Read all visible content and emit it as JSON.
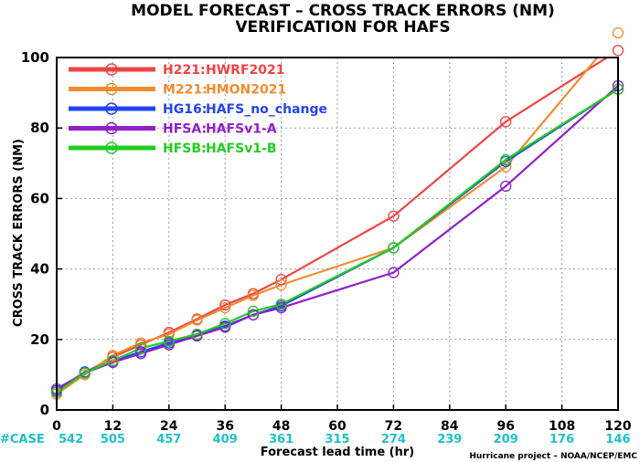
{
  "chart_data": {
    "type": "line",
    "title": "MODEL FORECAST – CROSS TRACK ERRORS (NM)",
    "subtitle": "VERIFICATION FOR HAFS",
    "xlabel": "Forecast lead time (hr)",
    "ylabel": "CROSS TRACK ERRORS (NM)",
    "credit": "Hurricane project – NOAA/NCEP/EMC",
    "xlim": [
      0,
      120
    ],
    "ylim": [
      0,
      100
    ],
    "x_ticks": [
      0,
      12,
      24,
      36,
      48,
      60,
      72,
      84,
      96,
      108,
      120
    ],
    "y_ticks": [
      0,
      20,
      40,
      60,
      80,
      100
    ],
    "grid": true,
    "legend_position": "top-left",
    "case_label": "#CASE",
    "case_color": "#20c0c8",
    "case_counts": [
      542,
      505,
      457,
      409,
      361,
      315,
      274,
      239,
      209,
      176,
      146
    ],
    "x": [
      0,
      6,
      12,
      18,
      24,
      30,
      36,
      42,
      48,
      72,
      96,
      120
    ],
    "series": [
      {
        "code": "H221:",
        "name": "HWRF2021",
        "color": "#ee4444",
        "values": [
          5.5,
          10.5,
          15.0,
          18.5,
          22.0,
          25.8,
          29.8,
          33.0,
          37.0,
          55.0,
          81.8,
          102.0
        ]
      },
      {
        "code": "M221:",
        "name": "HMON2021",
        "color": "#f08c30",
        "values": [
          4.5,
          10.0,
          15.5,
          19.0,
          21.5,
          25.5,
          29.0,
          32.5,
          35.5,
          46.0,
          69.0,
          107.0
        ]
      },
      {
        "code": "HG16:",
        "name": "HAFS_no_change",
        "color": "#2244ee",
        "values": [
          5.5,
          10.8,
          13.8,
          16.5,
          19.0,
          21.2,
          23.8,
          27.0,
          29.5,
          46.0,
          70.5,
          91.0
        ]
      },
      {
        "code": "HFSA:",
        "name": "HAFSv1-A",
        "color": "#9020c8",
        "values": [
          6.0,
          10.5,
          13.5,
          16.0,
          18.5,
          21.0,
          23.5,
          27.0,
          29.0,
          39.0,
          63.5,
          92.0
        ]
      },
      {
        "code": "HFSB:",
        "name": "HAFSv1-B",
        "color": "#22cc22",
        "values": [
          5.0,
          10.5,
          14.0,
          17.5,
          19.5,
          21.5,
          24.5,
          28.0,
          30.0,
          46.0,
          71.0,
          91.0
        ]
      }
    ]
  }
}
